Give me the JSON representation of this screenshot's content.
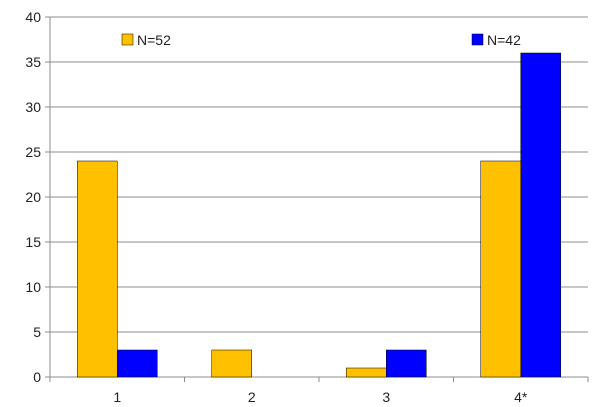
{
  "chart_data": {
    "type": "bar",
    "categories": [
      "1",
      "2",
      "3",
      "4*"
    ],
    "series": [
      {
        "name": "N=52",
        "color": "#FFC000",
        "values": [
          24,
          3,
          1,
          24
        ]
      },
      {
        "name": "N=42",
        "color": "#0000FF",
        "values": [
          3,
          0,
          3,
          36
        ]
      }
    ],
    "ylim": [
      0,
      40
    ],
    "yticks": [
      0,
      5,
      10,
      15,
      20,
      25,
      30,
      35,
      40
    ],
    "grid": true,
    "legend_position": "top",
    "title": "",
    "xlabel": "",
    "ylabel": ""
  }
}
